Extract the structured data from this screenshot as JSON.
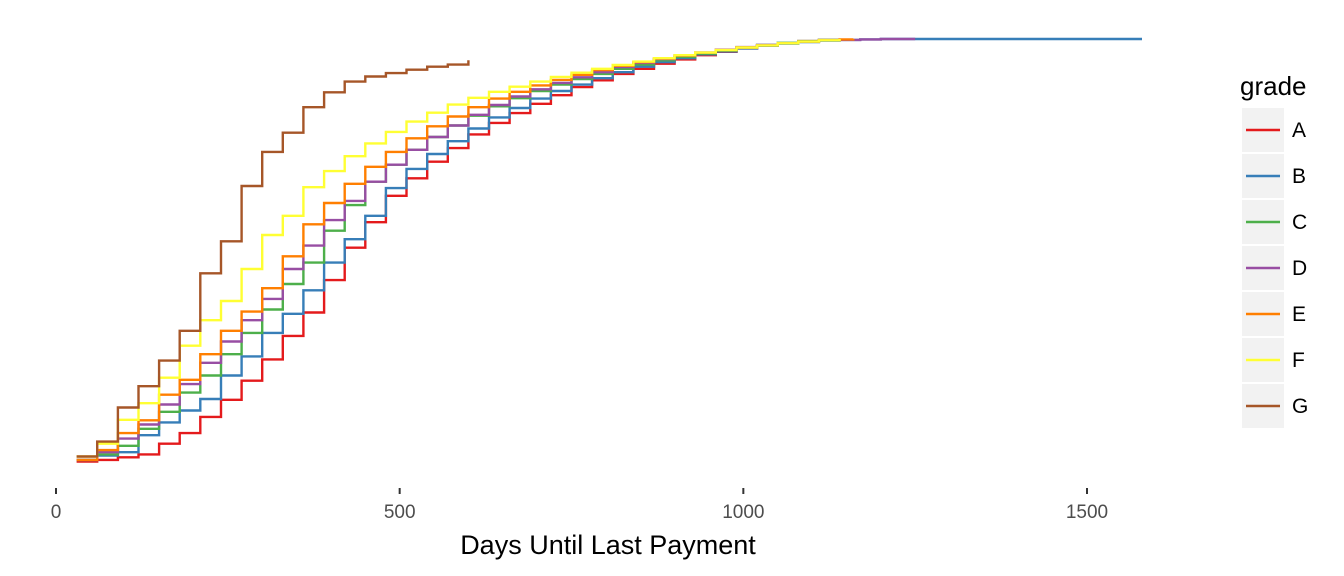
{
  "chart_data": {
    "type": "line",
    "step": true,
    "xlabel": "Days Until Last Payment",
    "ylabel": "",
    "xlim": [
      -50,
      1770
    ],
    "ylim": [
      0,
      1
    ],
    "x_ticks": [
      0,
      500,
      1000,
      1500
    ],
    "x_tick_labels": [
      "0",
      "500",
      "1000",
      "1500"
    ],
    "y_tick_labels": [],
    "grid": false,
    "legend": {
      "title": "grade",
      "position": "right"
    },
    "series": [
      {
        "name": "A",
        "color": "#E41A1C",
        "x": [
          30,
          60,
          90,
          120,
          150,
          180,
          210,
          240,
          270,
          300,
          330,
          360,
          390,
          420,
          450,
          480,
          510,
          540,
          570,
          600,
          630,
          660,
          690,
          720,
          750,
          780,
          810,
          840,
          870,
          900,
          930,
          960,
          990,
          1020,
          1050,
          1080,
          1110,
          1140
        ],
        "y": [
          0.008,
          0.012,
          0.018,
          0.025,
          0.05,
          0.075,
          0.113,
          0.153,
          0.198,
          0.248,
          0.303,
          0.358,
          0.434,
          0.51,
          0.57,
          0.632,
          0.673,
          0.712,
          0.744,
          0.776,
          0.803,
          0.826,
          0.848,
          0.868,
          0.887,
          0.903,
          0.918,
          0.93,
          0.942,
          0.952,
          0.962,
          0.97,
          0.978,
          0.985,
          0.99,
          0.995,
          0.998,
          1.0
        ]
      },
      {
        "name": "B",
        "color": "#377EB8",
        "x": [
          30,
          60,
          90,
          120,
          150,
          180,
          210,
          240,
          270,
          300,
          330,
          360,
          390,
          420,
          450,
          480,
          510,
          540,
          570,
          600,
          630,
          660,
          690,
          720,
          750,
          780,
          810,
          840,
          870,
          900,
          930,
          960,
          990,
          1020,
          1050,
          1080,
          1110,
          1140,
          1170,
          1200,
          1250,
          1580
        ],
        "y": [
          0.012,
          0.022,
          0.03,
          0.07,
          0.1,
          0.128,
          0.155,
          0.21,
          0.255,
          0.31,
          0.355,
          0.41,
          0.475,
          0.53,
          0.585,
          0.65,
          0.695,
          0.73,
          0.76,
          0.79,
          0.816,
          0.838,
          0.86,
          0.878,
          0.893,
          0.908,
          0.922,
          0.935,
          0.946,
          0.955,
          0.964,
          0.971,
          0.978,
          0.984,
          0.989,
          0.993,
          0.996,
          0.998,
          0.999,
          1.0,
          1.0,
          1.0
        ]
      },
      {
        "name": "C",
        "color": "#4DAF4A",
        "x": [
          30,
          60,
          90,
          120,
          150,
          180,
          210,
          240,
          270,
          300,
          330,
          360,
          390,
          420,
          450,
          480,
          510,
          540,
          570,
          600,
          630,
          660,
          690,
          720,
          750,
          780,
          810,
          840,
          870,
          900,
          930,
          960,
          990,
          1020,
          1050,
          1080,
          1110,
          1140
        ],
        "y": [
          0.012,
          0.025,
          0.045,
          0.085,
          0.125,
          0.17,
          0.21,
          0.26,
          0.31,
          0.365,
          0.425,
          0.475,
          0.55,
          0.61,
          0.665,
          0.705,
          0.74,
          0.77,
          0.797,
          0.82,
          0.842,
          0.861,
          0.878,
          0.893,
          0.906,
          0.918,
          0.93,
          0.94,
          0.95,
          0.958,
          0.966,
          0.973,
          0.98,
          0.986,
          0.991,
          0.995,
          0.998,
          1.0
        ]
      },
      {
        "name": "D",
        "color": "#984EA3",
        "x": [
          30,
          60,
          90,
          120,
          150,
          180,
          210,
          240,
          270,
          300,
          330,
          360,
          390,
          420,
          450,
          480,
          510,
          540,
          570,
          600,
          630,
          660,
          690,
          720,
          750,
          780,
          810,
          840,
          870,
          900,
          930,
          960,
          990,
          1020,
          1050,
          1080,
          1110,
          1140,
          1170,
          1200,
          1250
        ],
        "y": [
          0.012,
          0.03,
          0.062,
          0.095,
          0.142,
          0.19,
          0.24,
          0.29,
          0.34,
          0.39,
          0.46,
          0.515,
          0.575,
          0.62,
          0.665,
          0.705,
          0.74,
          0.77,
          0.797,
          0.822,
          0.845,
          0.865,
          0.882,
          0.897,
          0.91,
          0.922,
          0.934,
          0.944,
          0.953,
          0.961,
          0.968,
          0.975,
          0.981,
          0.986,
          0.99,
          0.994,
          0.997,
          0.998,
          0.999,
          1.0,
          1.0
        ]
      },
      {
        "name": "E",
        "color": "#FF7F00",
        "x": [
          30,
          60,
          90,
          120,
          150,
          180,
          210,
          240,
          270,
          300,
          330,
          360,
          390,
          420,
          450,
          480,
          510,
          540,
          570,
          600,
          630,
          660,
          690,
          720,
          750,
          780,
          810,
          840,
          870,
          900,
          930,
          960,
          990,
          1020,
          1050,
          1080,
          1110,
          1140,
          1160
        ],
        "y": [
          0.012,
          0.035,
          0.075,
          0.105,
          0.165,
          0.2,
          0.26,
          0.315,
          0.36,
          0.415,
          0.49,
          0.565,
          0.615,
          0.66,
          0.7,
          0.735,
          0.767,
          0.795,
          0.818,
          0.84,
          0.86,
          0.876,
          0.891,
          0.904,
          0.916,
          0.927,
          0.937,
          0.946,
          0.954,
          0.961,
          0.968,
          0.974,
          0.98,
          0.985,
          0.99,
          0.994,
          0.997,
          0.999,
          1.0
        ]
      },
      {
        "name": "F",
        "color": "#FFFF33",
        "x": [
          30,
          60,
          90,
          120,
          150,
          180,
          210,
          240,
          270,
          300,
          330,
          360,
          390,
          420,
          450,
          480,
          510,
          540,
          570,
          600,
          630,
          660,
          690,
          720,
          750,
          780,
          810,
          840,
          870,
          900,
          930,
          960,
          990,
          1020,
          1050,
          1080,
          1110,
          1140
        ],
        "y": [
          0.02,
          0.05,
          0.106,
          0.145,
          0.205,
          0.28,
          0.34,
          0.385,
          0.46,
          0.54,
          0.585,
          0.652,
          0.69,
          0.725,
          0.755,
          0.782,
          0.806,
          0.827,
          0.846,
          0.862,
          0.876,
          0.888,
          0.9,
          0.911,
          0.921,
          0.93,
          0.939,
          0.947,
          0.955,
          0.962,
          0.968,
          0.974,
          0.98,
          0.985,
          0.99,
          0.994,
          0.997,
          1.0
        ]
      },
      {
        "name": "G",
        "color": "#A65628",
        "x": [
          30,
          60,
          90,
          120,
          150,
          180,
          210,
          240,
          270,
          300,
          330,
          360,
          390,
          420,
          450,
          480,
          510,
          540,
          570,
          600
        ],
        "y": [
          0.02,
          0.055,
          0.135,
          0.185,
          0.245,
          0.315,
          0.45,
          0.525,
          0.655,
          0.735,
          0.78,
          0.84,
          0.875,
          0.9,
          0.912,
          0.92,
          0.928,
          0.935,
          0.94,
          0.95
        ]
      }
    ]
  }
}
